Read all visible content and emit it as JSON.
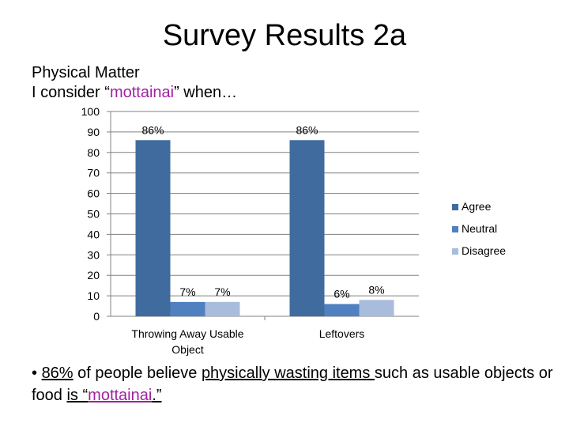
{
  "slide": {
    "title": "Survey Results 2a",
    "subtitle_line1": "Physical Matter",
    "subtitle_line2_prefix": "I consider “",
    "subtitle_line2_accent": "mottainai",
    "subtitle_line2_suffix": "” when…",
    "bullet": {
      "marker": "• ",
      "pct": "86%",
      "t1": " of people believe ",
      "u1": "physically wasting items ",
      "t2": "such as usable objects or food ",
      "u2a": "is “",
      "accent": "mottainai",
      "u2b": ".”"
    }
  },
  "colors": {
    "agree": "#3f6b9f",
    "neutral": "#5080c0",
    "disagree": "#a8bcdc",
    "accent": "#a020a0",
    "grid": "#808080"
  },
  "chart_data": {
    "type": "bar",
    "categories": [
      "Throwing Away Usable Object",
      "Leftovers"
    ],
    "category_label_lines": [
      [
        "Throwing Away Usable",
        "Object"
      ],
      [
        "Leftovers"
      ]
    ],
    "series": [
      {
        "name": "Agree",
        "values": [
          86,
          86
        ],
        "labels": [
          "86%",
          "86%"
        ]
      },
      {
        "name": "Neutral",
        "values": [
          7,
          6
        ],
        "labels": [
          "7%",
          "6%"
        ]
      },
      {
        "name": "Disagree",
        "values": [
          7,
          8
        ],
        "labels": [
          "7%",
          "8%"
        ]
      }
    ],
    "ylim": [
      0,
      100
    ],
    "yticks": [
      0,
      10,
      20,
      30,
      40,
      50,
      60,
      70,
      80,
      90,
      100
    ],
    "grid": true,
    "legend": "right"
  }
}
